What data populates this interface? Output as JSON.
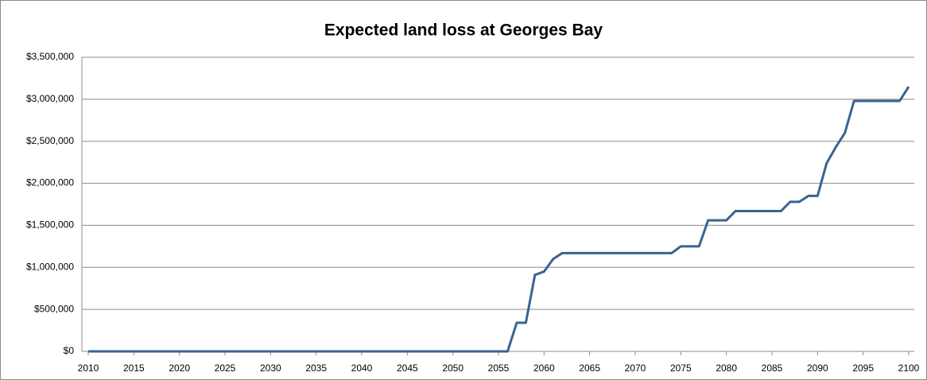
{
  "chart_data": {
    "type": "line",
    "title": "Expected land loss at Georges Bay",
    "x": [
      2010,
      2011,
      2012,
      2013,
      2014,
      2015,
      2016,
      2017,
      2018,
      2019,
      2020,
      2021,
      2022,
      2023,
      2024,
      2025,
      2026,
      2027,
      2028,
      2029,
      2030,
      2031,
      2032,
      2033,
      2034,
      2035,
      2036,
      2037,
      2038,
      2039,
      2040,
      2041,
      2042,
      2043,
      2044,
      2045,
      2046,
      2047,
      2048,
      2049,
      2050,
      2051,
      2052,
      2053,
      2054,
      2055,
      2056,
      2057,
      2058,
      2059,
      2060,
      2061,
      2062,
      2063,
      2064,
      2065,
      2066,
      2067,
      2068,
      2069,
      2070,
      2071,
      2072,
      2073,
      2074,
      2075,
      2076,
      2077,
      2078,
      2079,
      2080,
      2081,
      2082,
      2083,
      2084,
      2085,
      2086,
      2087,
      2088,
      2089,
      2090,
      2091,
      2092,
      2093,
      2094,
      2095,
      2096,
      2097,
      2098,
      2099,
      2100
    ],
    "values": [
      0,
      0,
      0,
      0,
      0,
      0,
      0,
      0,
      0,
      0,
      0,
      0,
      0,
      0,
      0,
      0,
      0,
      0,
      0,
      0,
      0,
      0,
      0,
      0,
      0,
      0,
      0,
      0,
      0,
      0,
      0,
      0,
      0,
      0,
      0,
      0,
      0,
      0,
      0,
      0,
      0,
      0,
      0,
      0,
      0,
      0,
      0,
      340000,
      340000,
      910000,
      950000,
      1100000,
      1170000,
      1170000,
      1170000,
      1170000,
      1170000,
      1170000,
      1170000,
      1170000,
      1170000,
      1170000,
      1170000,
      1170000,
      1170000,
      1250000,
      1250000,
      1250000,
      1560000,
      1560000,
      1560000,
      1670000,
      1670000,
      1670000,
      1670000,
      1670000,
      1670000,
      1780000,
      1780000,
      1850000,
      1850000,
      2240000,
      2430000,
      2600000,
      2980000,
      2980000,
      2980000,
      2980000,
      2980000,
      2980000,
      3150000
    ],
    "color": "#3b6391",
    "xlim": [
      2010,
      2100
    ],
    "xticks": [
      2010,
      2015,
      2020,
      2025,
      2030,
      2035,
      2040,
      2045,
      2050,
      2055,
      2060,
      2065,
      2070,
      2075,
      2080,
      2085,
      2090,
      2095,
      2100
    ],
    "ylim": [
      0,
      3500000
    ],
    "yticks": [
      {
        "value": 0,
        "label": "$0"
      },
      {
        "value": 500000,
        "label": "$500,000"
      },
      {
        "value": 1000000,
        "label": "$1,000,000"
      },
      {
        "value": 1500000,
        "label": "$1,500,000"
      },
      {
        "value": 2000000,
        "label": "$2,000,000"
      },
      {
        "value": 2500000,
        "label": "$2,500,000"
      },
      {
        "value": 3000000,
        "label": "$3,000,000"
      },
      {
        "value": 3500000,
        "label": "$3,500,000"
      }
    ],
    "grid": true
  }
}
